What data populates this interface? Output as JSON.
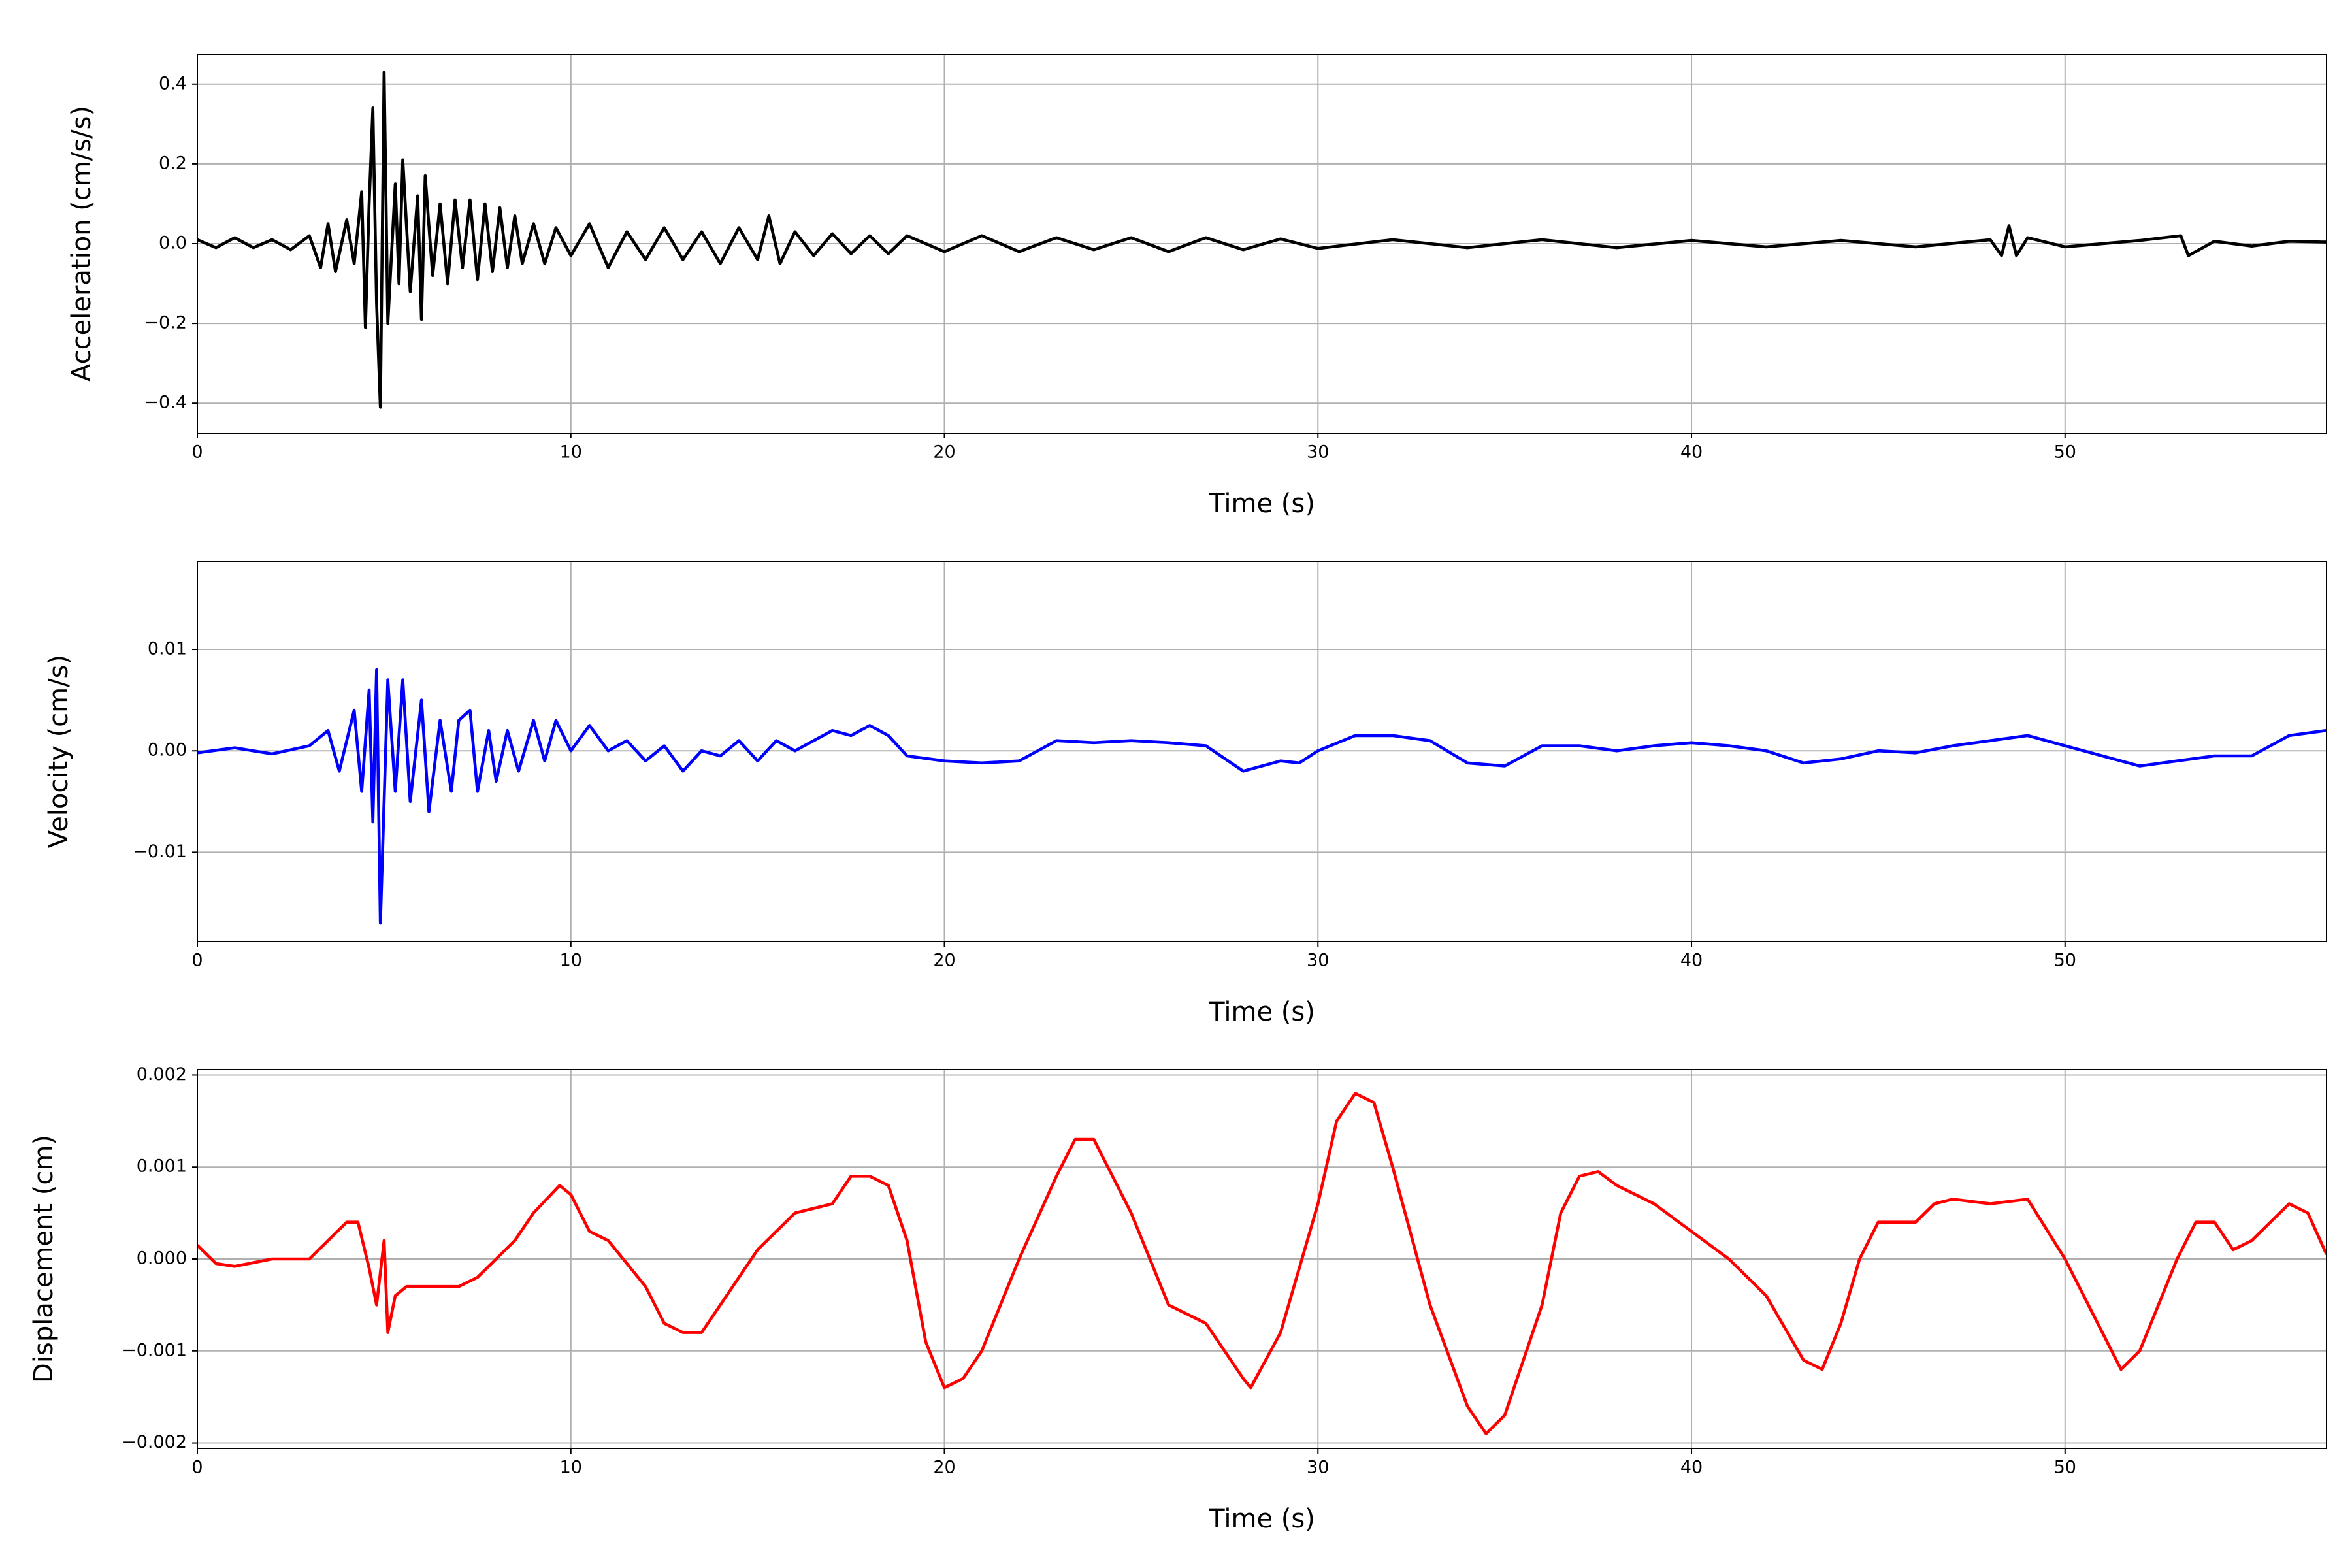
{
  "chart_data": [
    {
      "type": "line",
      "ylabel": "Acceleration (cm/s/s)",
      "xlabel": "Time (s)",
      "color": "#000000",
      "grid": true,
      "xlim": [
        0,
        57
      ],
      "xticks": [
        0,
        10,
        20,
        30,
        40,
        50
      ],
      "ylim": [
        -0.475,
        0.475
      ],
      "yticks": [
        {
          "value": -0.4,
          "label": "−0.4"
        },
        {
          "value": -0.2,
          "label": "−0.2"
        },
        {
          "value": 0,
          "label": "0.0"
        },
        0.2,
        0.4
      ],
      "x": [
        0,
        0.5,
        1,
        1.5,
        2,
        2.5,
        3,
        3.3,
        3.5,
        3.7,
        4,
        4.2,
        4.4,
        4.5,
        4.6,
        4.7,
        4.8,
        4.9,
        5.0,
        5.1,
        5.3,
        5.4,
        5.5,
        5.7,
        5.9,
        6.0,
        6.1,
        6.3,
        6.5,
        6.7,
        6.9,
        7.1,
        7.3,
        7.5,
        7.7,
        7.9,
        8.1,
        8.3,
        8.5,
        8.7,
        9,
        9.3,
        9.6,
        10,
        10.5,
        11,
        11.5,
        12,
        12.5,
        13,
        13.5,
        14,
        14.5,
        15,
        15.3,
        15.6,
        16,
        16.5,
        17,
        17.5,
        18,
        18.5,
        19,
        20,
        21,
        22,
        23,
        24,
        25,
        26,
        27,
        28,
        29,
        30,
        32,
        34,
        36,
        38,
        40,
        42,
        44,
        46,
        48,
        48.3,
        48.5,
        48.7,
        49,
        50,
        52,
        53.1,
        53.3,
        54,
        55,
        56,
        57
      ],
      "values": [
        0.01,
        -0.01,
        0.015,
        -0.01,
        0.01,
        -0.015,
        0.02,
        -0.06,
        0.05,
        -0.07,
        0.06,
        -0.05,
        0.13,
        -0.21,
        0.1,
        0.34,
        -0.15,
        -0.41,
        0.43,
        -0.2,
        0.15,
        -0.1,
        0.21,
        -0.12,
        0.12,
        -0.19,
        0.17,
        -0.08,
        0.1,
        -0.1,
        0.11,
        -0.06,
        0.11,
        -0.09,
        0.1,
        -0.07,
        0.09,
        -0.06,
        0.07,
        -0.05,
        0.05,
        -0.05,
        0.04,
        -0.03,
        0.05,
        -0.06,
        0.03,
        -0.04,
        0.04,
        -0.04,
        0.03,
        -0.05,
        0.04,
        -0.04,
        0.07,
        -0.05,
        0.03,
        -0.03,
        0.025,
        -0.025,
        0.02,
        -0.025,
        0.02,
        -0.02,
        0.02,
        -0.02,
        0.015,
        -0.015,
        0.015,
        -0.02,
        0.015,
        -0.015,
        0.012,
        -0.012,
        0.01,
        -0.01,
        0.01,
        -0.01,
        0.008,
        -0.008,
        0.008,
        -0.008,
        0.01,
        -0.03,
        0.045,
        -0.03,
        0.015,
        -0.008,
        0.008,
        0.02,
        -0.03,
        0.006,
        -0.006,
        0.006,
        0.004
      ]
    },
    {
      "type": "line",
      "ylabel": "Velocity (cm/s)",
      "xlabel": "Time (s)",
      "color": "#0000ff",
      "grid": true,
      "xlim": [
        0,
        57
      ],
      "xticks": [
        0,
        10,
        20,
        30,
        40,
        50
      ],
      "ylim": [
        -0.0188,
        0.0187
      ],
      "yticks": [
        {
          "value": -0.01,
          "label": "−0.01"
        },
        {
          "value": 0,
          "label": "0.00"
        },
        0.01
      ],
      "x": [
        0,
        1,
        2,
        3,
        3.5,
        3.8,
        4.2,
        4.4,
        4.6,
        4.7,
        4.8,
        4.9,
        5.1,
        5.3,
        5.5,
        5.7,
        6,
        6.2,
        6.5,
        6.8,
        7,
        7.3,
        7.5,
        7.8,
        8,
        8.3,
        8.6,
        9,
        9.3,
        9.6,
        10,
        10.5,
        11,
        11.5,
        12,
        12.5,
        13,
        13.5,
        14,
        14.5,
        15,
        15.5,
        16,
        16.5,
        17,
        17.5,
        18,
        18.5,
        19,
        20,
        21,
        22,
        23,
        24,
        25,
        26,
        27,
        28,
        29,
        29.5,
        30,
        31,
        32,
        33,
        34,
        35,
        36,
        37,
        38,
        39,
        40,
        41,
        42,
        43,
        44,
        45,
        46,
        47,
        48,
        49,
        50,
        51,
        52,
        53,
        54,
        55,
        56,
        57
      ],
      "values": [
        -0.0002,
        0.0003,
        -0.0003,
        0.0005,
        0.002,
        -0.002,
        0.004,
        -0.004,
        0.006,
        -0.007,
        0.008,
        -0.017,
        0.007,
        -0.004,
        0.007,
        -0.005,
        0.005,
        -0.006,
        0.003,
        -0.004,
        0.003,
        0.004,
        -0.004,
        0.002,
        -0.003,
        0.002,
        -0.002,
        0.003,
        -0.001,
        0.003,
        0,
        0.0025,
        0,
        0.001,
        -0.001,
        0.0005,
        -0.002,
        0,
        -0.0005,
        0.001,
        -0.001,
        0.001,
        0,
        0.001,
        0.002,
        0.0015,
        0.0025,
        0.0015,
        -0.0005,
        -0.001,
        -0.0012,
        -0.001,
        0.001,
        0.0008,
        0.001,
        0.0008,
        0.0005,
        -0.002,
        -0.001,
        -0.0012,
        0,
        0.0015,
        0.0015,
        0.001,
        -0.0012,
        -0.0015,
        0.0005,
        0.0005,
        0,
        0.0005,
        0.0008,
        0.0005,
        0,
        -0.0012,
        -0.0008,
        0,
        -0.0002,
        0.0005,
        0.001,
        0.0015,
        0.0005,
        -0.0005,
        -0.0015,
        -0.001,
        -0.0005,
        -0.0005,
        0.0015,
        0.002
      ]
    },
    {
      "type": "line",
      "ylabel": "Displacement (cm)",
      "xlabel": "Time (s)",
      "color": "#ff0000",
      "grid": true,
      "xlim": [
        0,
        57
      ],
      "xticks": [
        0,
        10,
        20,
        30,
        40,
        50
      ],
      "ylim": [
        -0.00206,
        0.00206
      ],
      "yticks": [
        {
          "value": -0.002,
          "label": "−0.002"
        },
        {
          "value": -0.001,
          "label": "−0.001"
        },
        {
          "value": 0,
          "label": "0.000"
        },
        0.001,
        0.002
      ],
      "x": [
        0,
        0.5,
        1,
        2,
        3,
        3.5,
        4,
        4.3,
        4.6,
        4.8,
        5,
        5.1,
        5.3,
        5.6,
        6,
        6.5,
        7,
        7.5,
        8,
        8.5,
        9,
        9.7,
        10,
        10.5,
        11,
        12,
        12.5,
        13,
        13.5,
        14,
        15,
        15.5,
        16,
        17,
        17.5,
        18,
        18.5,
        19,
        19.5,
        20,
        20.5,
        21,
        22,
        23,
        23.5,
        24,
        25,
        26,
        27,
        28,
        28.2,
        29,
        30,
        30.5,
        31,
        31.5,
        32,
        33,
        34,
        34.5,
        35,
        36,
        36.5,
        37,
        37.5,
        38,
        39,
        40,
        41,
        42,
        43,
        43.5,
        44,
        44.5,
        45,
        46,
        46.5,
        47,
        48,
        49,
        50,
        51,
        51.5,
        52,
        53,
        53.5,
        54,
        54.5,
        55,
        56,
        56.5,
        57
      ],
      "values": [
        0.00015,
        -5e-05,
        -8e-05,
        0,
        0,
        0.0002,
        0.0004,
        0.0004,
        -0.0001,
        -0.0005,
        0.0002,
        -0.0008,
        -0.0004,
        -0.0003,
        -0.0003,
        -0.0003,
        -0.0003,
        -0.0002,
        0,
        0.0002,
        0.0005,
        0.0008,
        0.0007,
        0.0003,
        0.0002,
        -0.0003,
        -0.0007,
        -0.0008,
        -0.0008,
        -0.0005,
        0.0001,
        0.0003,
        0.0005,
        0.0006,
        0.0009,
        0.0009,
        0.0008,
        0.0002,
        -0.0009,
        -0.0014,
        -0.0013,
        -0.001,
        0,
        0.0009,
        0.0013,
        0.0013,
        0.0005,
        -0.0005,
        -0.0007,
        -0.0013,
        -0.0014,
        -0.0008,
        0.0006,
        0.0015,
        0.0018,
        0.0017,
        0.001,
        -0.0005,
        -0.0016,
        -0.0019,
        -0.0017,
        -0.0005,
        0.0005,
        0.0009,
        0.00095,
        0.0008,
        0.0006,
        0.0003,
        0,
        -0.0004,
        -0.0011,
        -0.0012,
        -0.0007,
        0,
        0.0004,
        0.0004,
        0.0006,
        0.00065,
        0.0006,
        0.00065,
        0,
        -0.0008,
        -0.0012,
        -0.001,
        0,
        0.0004,
        0.0004,
        0.0001,
        0.0002,
        0.0006,
        0.0005,
        5e-05
      ]
    }
  ]
}
